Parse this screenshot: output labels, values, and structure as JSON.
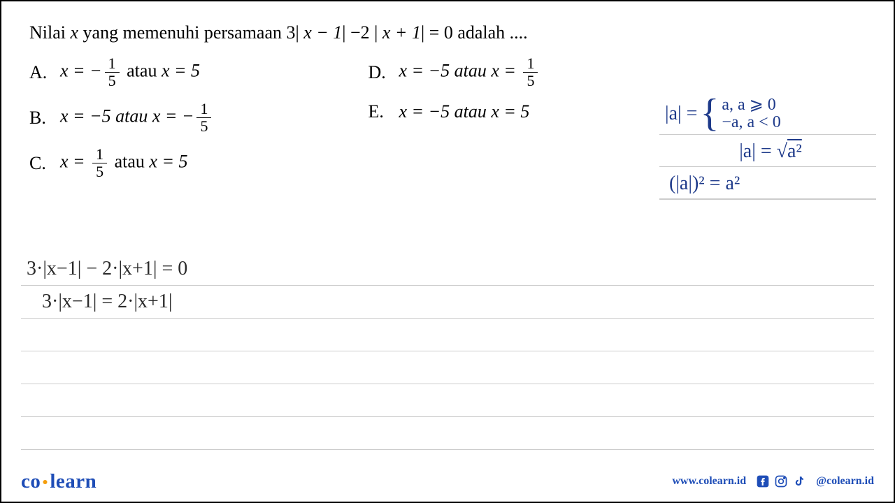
{
  "question": {
    "prefix": "Nilai ",
    "var": "x",
    "middle": " yang memenuhi persamaan 3| ",
    "expr1": "x − 1",
    "mid2": "| −2 | ",
    "expr2": "x + 1",
    "suffix": "| = 0 adalah ...."
  },
  "options": {
    "A": {
      "label": "A.",
      "pre": "x = −",
      "frac_num": "1",
      "frac_den": "5",
      "mid": " atau ",
      "post": "x = 5"
    },
    "B": {
      "label": "B.",
      "pre": "x = −5 atau x = −",
      "frac_num": "1",
      "frac_den": "5"
    },
    "C": {
      "label": "C.",
      "pre": "x = ",
      "frac_num": "1",
      "frac_den": "5",
      "mid": " atau ",
      "post": "x = 5"
    },
    "D": {
      "label": "D.",
      "pre": "x = −5 atau x = ",
      "frac_num": "1",
      "frac_den": "5"
    },
    "E": {
      "label": "E.",
      "text": "x = −5 atau x = 5"
    }
  },
  "handwriting_right": {
    "line1_lhs": "|a| = ",
    "line1_case1": "a, a ⩾ 0",
    "line1_case2": "−a, a < 0",
    "line2": "|a| = √",
    "line2_rad": "a²",
    "line3": "(|a|)² = a²"
  },
  "handwriting_left": {
    "line1": "3·|x−1| − 2·|x+1| = 0",
    "line2": "3·|x−1|   =   2·|x+1|"
  },
  "num_blank_work_lines": 4,
  "footer": {
    "logo_part1": "co",
    "logo_part2": "learn",
    "website": "www.colearn.id",
    "handle": "@colearn.id"
  },
  "colors": {
    "brand_blue": "#1e4db7",
    "handwriting_blue": "#1e3a8a",
    "rule_gray": "#ccc",
    "accent_orange": "#f59e0b"
  }
}
